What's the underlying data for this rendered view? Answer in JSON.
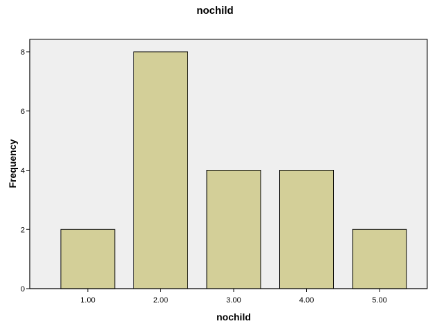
{
  "chart_data": {
    "type": "bar",
    "title": "nochild",
    "xlabel": "nochild",
    "ylabel": "Frequency",
    "categories": [
      "1.00",
      "2.00",
      "3.00",
      "4.00",
      "5.00"
    ],
    "values": [
      2,
      8,
      4,
      4,
      2
    ],
    "ylim": [
      0,
      8
    ],
    "yticks": [
      "0",
      "2",
      "4",
      "6",
      "8"
    ],
    "grid": false,
    "legend": "none",
    "colors": {
      "bar_fill": "#d3cf98",
      "bar_stroke": "#000000",
      "plot_background": "#efefef",
      "axis": "#000000",
      "text": "#000000"
    }
  }
}
